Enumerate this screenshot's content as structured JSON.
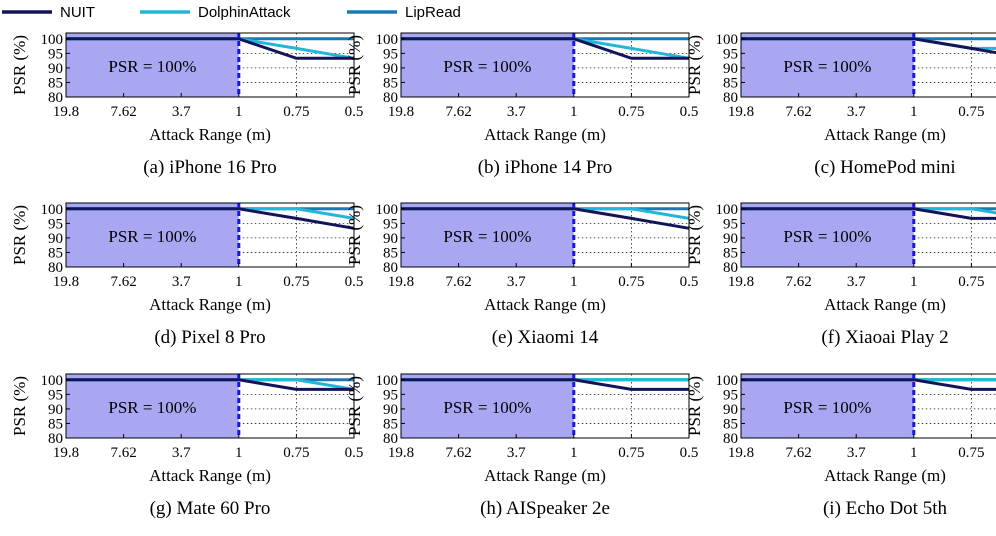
{
  "legend": [
    {
      "name": "NUIT",
      "color": "#12145a"
    },
    {
      "name": "DolphinAttack",
      "color": "#22b6d8"
    },
    {
      "name": "LipRead",
      "color": "#1a78b4"
    }
  ],
  "colors": {
    "shade": "#a9a6f2",
    "divider": "#1515e8",
    "grid": "#222222"
  },
  "shared": {
    "xlabel": "Attack Range (m)",
    "ylabel": "PSR (%)",
    "xticks": [
      "19.8",
      "7.62",
      "3.7",
      "1",
      "0.75",
      "0.5"
    ],
    "yticks": [
      100,
      95,
      90,
      85,
      80
    ],
    "ylim": [
      80,
      102
    ],
    "psr_label": "PSR = 100%"
  },
  "chart_data": [
    {
      "type": "line",
      "title": "(a) iPhone 16 Pro",
      "xlabel": "Attack Range (m)",
      "ylabel": "PSR (%)",
      "categories": [
        "19.8",
        "7.62",
        "3.7",
        "1",
        "0.75",
        "0.5"
      ],
      "ylim": [
        80,
        102
      ],
      "annotation": "PSR = 100%",
      "series": [
        {
          "name": "NUIT",
          "values": [
            100,
            100,
            100,
            100,
            93.3,
            93.3
          ]
        },
        {
          "name": "DolphinAttack",
          "values": [
            100,
            100,
            100,
            100,
            96.7,
            93.3
          ]
        },
        {
          "name": "LipRead",
          "values": [
            100,
            100,
            100,
            100,
            100,
            100
          ]
        }
      ]
    },
    {
      "type": "line",
      "title": "(b) iPhone 14 Pro",
      "xlabel": "Attack Range (m)",
      "ylabel": "PSR (%)",
      "categories": [
        "19.8",
        "7.62",
        "3.7",
        "1",
        "0.75",
        "0.5"
      ],
      "ylim": [
        80,
        102
      ],
      "annotation": "PSR = 100%",
      "series": [
        {
          "name": "NUIT",
          "values": [
            100,
            100,
            100,
            100,
            93.3,
            93.3
          ]
        },
        {
          "name": "DolphinAttack",
          "values": [
            100,
            100,
            100,
            100,
            96.7,
            93.3
          ]
        },
        {
          "name": "LipRead",
          "values": [
            100,
            100,
            100,
            100,
            100,
            100
          ]
        }
      ]
    },
    {
      "type": "line",
      "title": "(c) HomePod mini",
      "xlabel": "Attack Range (m)",
      "ylabel": "PSR (%)",
      "categories": [
        "19.8",
        "7.62",
        "3.7",
        "1",
        "0.75",
        "0.5"
      ],
      "ylim": [
        80,
        102
      ],
      "annotation": "PSR = 100%",
      "series": [
        {
          "name": "NUIT",
          "values": [
            100,
            100,
            100,
            100,
            96.7,
            93.3
          ]
        },
        {
          "name": "DolphinAttack",
          "values": [
            100,
            100,
            100,
            100,
            96.7,
            96.7
          ]
        },
        {
          "name": "LipRead",
          "values": [
            100,
            100,
            100,
            100,
            100,
            100
          ]
        }
      ]
    },
    {
      "type": "line",
      "title": "(d) Pixel 8 Pro",
      "xlabel": "Attack Range (m)",
      "ylabel": "PSR (%)",
      "categories": [
        "19.8",
        "7.62",
        "3.7",
        "1",
        "0.75",
        "0.5"
      ],
      "ylim": [
        80,
        102
      ],
      "annotation": "PSR = 100%",
      "series": [
        {
          "name": "NUIT",
          "values": [
            100,
            100,
            100,
            100,
            96.7,
            93.3
          ]
        },
        {
          "name": "DolphinAttack",
          "values": [
            100,
            100,
            100,
            100,
            100,
            96.7
          ]
        },
        {
          "name": "LipRead",
          "values": [
            100,
            100,
            100,
            100,
            100,
            100
          ]
        }
      ]
    },
    {
      "type": "line",
      "title": "(e) Xiaomi 14",
      "xlabel": "Attack Range (m)",
      "ylabel": "PSR (%)",
      "categories": [
        "19.8",
        "7.62",
        "3.7",
        "1",
        "0.75",
        "0.5"
      ],
      "ylim": [
        80,
        102
      ],
      "annotation": "PSR = 100%",
      "series": [
        {
          "name": "NUIT",
          "values": [
            100,
            100,
            100,
            100,
            96.7,
            93.3
          ]
        },
        {
          "name": "DolphinAttack",
          "values": [
            100,
            100,
            100,
            100,
            100,
            96.7
          ]
        },
        {
          "name": "LipRead",
          "values": [
            100,
            100,
            100,
            100,
            100,
            100
          ]
        }
      ]
    },
    {
      "type": "line",
      "title": "(f) Xiaoai Play 2",
      "xlabel": "Attack Range (m)",
      "ylabel": "PSR (%)",
      "categories": [
        "19.8",
        "7.62",
        "3.7",
        "1",
        "0.75",
        "0.5"
      ],
      "ylim": [
        80,
        102
      ],
      "annotation": "PSR = 100%",
      "series": [
        {
          "name": "NUIT",
          "values": [
            100,
            100,
            100,
            100,
            96.7,
            96.7
          ]
        },
        {
          "name": "DolphinAttack",
          "values": [
            100,
            100,
            100,
            100,
            100,
            96.7
          ]
        },
        {
          "name": "LipRead",
          "values": [
            100,
            100,
            100,
            100,
            100,
            100
          ]
        }
      ]
    },
    {
      "type": "line",
      "title": "(g) Mate 60 Pro",
      "xlabel": "Attack Range (m)",
      "ylabel": "PSR (%)",
      "categories": [
        "19.8",
        "7.62",
        "3.7",
        "1",
        "0.75",
        "0.5"
      ],
      "ylim": [
        80,
        102
      ],
      "annotation": "PSR = 100%",
      "series": [
        {
          "name": "NUIT",
          "values": [
            100,
            100,
            100,
            100,
            96.7,
            96.7
          ]
        },
        {
          "name": "DolphinAttack",
          "values": [
            100,
            100,
            100,
            100,
            100,
            96.7
          ]
        },
        {
          "name": "LipRead",
          "values": [
            100,
            100,
            100,
            100,
            100,
            100
          ]
        }
      ]
    },
    {
      "type": "line",
      "title": "(h) AISpeaker 2e",
      "xlabel": "Attack Range (m)",
      "ylabel": "PSR (%)",
      "categories": [
        "19.8",
        "7.62",
        "3.7",
        "1",
        "0.75",
        "0.5"
      ],
      "ylim": [
        80,
        102
      ],
      "annotation": "PSR = 100%",
      "series": [
        {
          "name": "NUIT",
          "values": [
            100,
            100,
            100,
            100,
            96.7,
            96.7
          ]
        },
        {
          "name": "DolphinAttack",
          "values": [
            100,
            100,
            100,
            100,
            100,
            100
          ]
        },
        {
          "name": "LipRead",
          "values": [
            100,
            100,
            100,
            100,
            100,
            100
          ]
        }
      ]
    },
    {
      "type": "line",
      "title": "(i) Echo Dot 5th",
      "xlabel": "Attack Range (m)",
      "ylabel": "PSR (%)",
      "categories": [
        "19.8",
        "7.62",
        "3.7",
        "1",
        "0.75",
        "0.5"
      ],
      "ylim": [
        80,
        102
      ],
      "annotation": "PSR = 100%",
      "series": [
        {
          "name": "NUIT",
          "values": [
            100,
            100,
            100,
            100,
            96.7,
            96.7
          ]
        },
        {
          "name": "DolphinAttack",
          "values": [
            100,
            100,
            100,
            100,
            100,
            100
          ]
        },
        {
          "name": "LipRead",
          "values": [
            100,
            100,
            100,
            100,
            100,
            100
          ]
        }
      ]
    }
  ]
}
